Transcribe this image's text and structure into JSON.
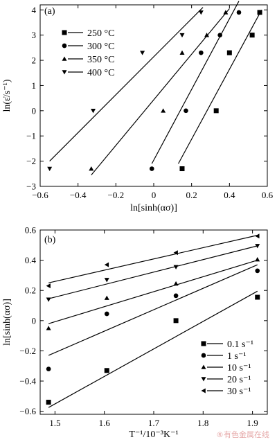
{
  "chart_data": [
    {
      "panel_label": "(a)",
      "type": "scatter",
      "xlabel": "ln[sinh(ασ)]",
      "ylabel": "ln(ε̇/s⁻¹)",
      "xlim": [
        -0.6,
        0.6
      ],
      "ylim": [
        -3,
        4.2
      ],
      "xticks": [
        -0.6,
        -0.4,
        -0.2,
        0,
        0.2,
        0.4,
        0.6
      ],
      "xtick_labels": [
        "−0.6",
        "−0.4",
        "−0.2",
        "0",
        "0.2",
        "0.4",
        "0.6"
      ],
      "yticks": [
        -3,
        -2,
        -1,
        0,
        1,
        2,
        3,
        4
      ],
      "ytick_labels": [
        "−3",
        "−2",
        "−1",
        "0",
        "1",
        "2",
        "3",
        "4"
      ],
      "legend_position": "top-left",
      "series": [
        {
          "name": "250 °C",
          "marker": "square",
          "points": [
            [
              0.15,
              -2.3
            ],
            [
              0.33,
              0.0
            ],
            [
              0.4,
              2.3
            ],
            [
              0.52,
              3.0
            ],
            [
              0.56,
              3.9
            ]
          ],
          "fit": [
            [
              0.13,
              -2.1
            ],
            [
              0.57,
              4.0
            ]
          ]
        },
        {
          "name": "300 °C",
          "marker": "circle",
          "points": [
            [
              -0.01,
              -2.3
            ],
            [
              0.17,
              0.0
            ],
            [
              0.25,
              2.3
            ],
            [
              0.35,
              3.0
            ],
            [
              0.45,
              3.9
            ]
          ],
          "fit": [
            [
              -0.01,
              -2.1
            ],
            [
              0.45,
              4.35
            ]
          ]
        },
        {
          "name": "350 °C",
          "marker": "triangle-up",
          "points": [
            [
              -0.33,
              -2.3
            ],
            [
              0.05,
              0.0
            ],
            [
              0.15,
              2.3
            ],
            [
              0.28,
              3.0
            ],
            [
              0.38,
              3.9
            ]
          ],
          "fit": [
            [
              -0.33,
              -2.55
            ],
            [
              0.4,
              4.05
            ]
          ]
        },
        {
          "name": "400 °C",
          "marker": "triangle-down",
          "points": [
            [
              -0.55,
              -2.3
            ],
            [
              -0.32,
              0.0
            ],
            [
              -0.06,
              2.3
            ],
            [
              0.15,
              3.0
            ],
            [
              0.25,
              3.9
            ]
          ],
          "fit": [
            [
              -0.55,
              -2.0
            ],
            [
              0.26,
              4.1
            ]
          ]
        }
      ]
    },
    {
      "panel_label": "(b)",
      "type": "scatter",
      "xlabel": "T⁻¹/10⁻³K⁻¹",
      "ylabel": "ln[sinh(ασ)]",
      "xlim": [
        1.47,
        1.93
      ],
      "ylim": [
        -0.62,
        0.6
      ],
      "xticks": [
        1.5,
        1.6,
        1.7,
        1.8,
        1.9
      ],
      "xtick_labels": [
        "1.5",
        "1.6",
        "1.7",
        "1.8",
        "1.9"
      ],
      "yticks": [
        -0.6,
        -0.4,
        -0.2,
        0,
        0.2,
        0.4,
        0.6
      ],
      "ytick_labels": [
        "−0.6",
        "−0.4",
        "−0.2",
        "0",
        "0.2",
        "0.4",
        "0.6"
      ],
      "legend_position": "bottom-right",
      "series": [
        {
          "name": "0.1 s⁻¹",
          "marker": "square",
          "points": [
            [
              1.487,
              -0.54
            ],
            [
              1.605,
              -0.33
            ],
            [
              1.745,
              0.0
            ],
            [
              1.91,
              0.155
            ]
          ],
          "fit": [
            [
              1.487,
              -0.575
            ],
            [
              1.91,
              0.195
            ]
          ]
        },
        {
          "name": "1 s⁻¹",
          "marker": "circle",
          "points": [
            [
              1.487,
              -0.32
            ],
            [
              1.605,
              0.045
            ],
            [
              1.745,
              0.165
            ],
            [
              1.91,
              0.33
            ]
          ],
          "fit": [
            [
              1.487,
              -0.23
            ],
            [
              1.91,
              0.37
            ]
          ]
        },
        {
          "name": "10 s⁻¹",
          "marker": "triangle-up",
          "points": [
            [
              1.487,
              -0.05
            ],
            [
              1.605,
              0.15
            ],
            [
              1.745,
              0.245
            ],
            [
              1.91,
              0.405
            ]
          ],
          "fit": [
            [
              1.487,
              -0.02
            ],
            [
              1.91,
              0.4
            ]
          ]
        },
        {
          "name": "20 s⁻¹",
          "marker": "triangle-down",
          "points": [
            [
              1.487,
              0.14
            ],
            [
              1.605,
              0.27
            ],
            [
              1.745,
              0.355
            ],
            [
              1.91,
              0.495
            ]
          ],
          "fit": [
            [
              1.487,
              0.145
            ],
            [
              1.91,
              0.495
            ]
          ]
        },
        {
          "name": "30 s⁻¹",
          "marker": "triangle-left",
          "points": [
            [
              1.487,
              0.23
            ],
            [
              1.605,
              0.37
            ],
            [
              1.745,
              0.45
            ],
            [
              1.91,
              0.56
            ]
          ],
          "fit": [
            [
              1.487,
              0.25
            ],
            [
              1.91,
              0.565
            ]
          ]
        }
      ]
    }
  ],
  "watermark": "®有色金属在线"
}
